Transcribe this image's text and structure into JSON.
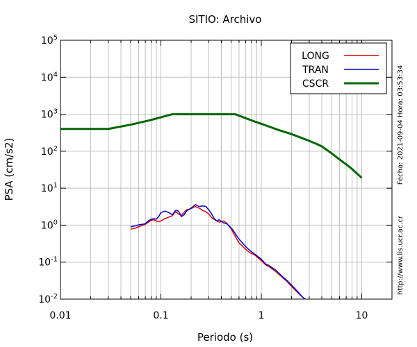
{
  "chart_data": {
    "type": "line",
    "title": "SITIO: Archivo",
    "xlabel": "Periodo (s)",
    "ylabel": "PSA (cm/s2)",
    "xscale": "log",
    "yscale": "log",
    "xlim": [
      0.01,
      20
    ],
    "ylim": [
      0.01,
      100000
    ],
    "grid": true,
    "legend_position": "top-right",
    "x_ticks": [
      {
        "label": "0.01",
        "value": 0.01
      },
      {
        "label": "0.1",
        "value": 0.1
      },
      {
        "label": "1",
        "value": 1
      },
      {
        "label": "10",
        "value": 10
      }
    ],
    "y_ticks": [
      {
        "base": "10",
        "exp": "-2",
        "value": 0.01
      },
      {
        "base": "10",
        "exp": "-1",
        "value": 0.1
      },
      {
        "base": "10",
        "exp": "0",
        "value": 1
      },
      {
        "base": "10",
        "exp": "1",
        "value": 10
      },
      {
        "base": "10",
        "exp": "2",
        "value": 100
      },
      {
        "base": "10",
        "exp": "3",
        "value": 1000
      },
      {
        "base": "10",
        "exp": "4",
        "value": 10000
      },
      {
        "base": "10",
        "exp": "5",
        "value": 100000
      }
    ],
    "side_text_date": "Fecha: 2021-09-04 Hora: 03:53:34",
    "side_text_url": "http://www.lis.ucr.ac.cr",
    "series": [
      {
        "name": "LONG",
        "color": "#dd0000",
        "points": [
          [
            0.05,
            0.78
          ],
          [
            0.055,
            0.82
          ],
          [
            0.06,
            0.9
          ],
          [
            0.065,
            0.98
          ],
          [
            0.07,
            1.05
          ],
          [
            0.075,
            1.2
          ],
          [
            0.08,
            1.35
          ],
          [
            0.085,
            1.4
          ],
          [
            0.09,
            1.3
          ],
          [
            0.095,
            1.25
          ],
          [
            0.1,
            1.3
          ],
          [
            0.11,
            1.5
          ],
          [
            0.12,
            1.65
          ],
          [
            0.13,
            1.8
          ],
          [
            0.14,
            2.3
          ],
          [
            0.15,
            2.0
          ],
          [
            0.16,
            1.85
          ],
          [
            0.17,
            2.2
          ],
          [
            0.18,
            2.6
          ],
          [
            0.2,
            2.8
          ],
          [
            0.22,
            3.2
          ],
          [
            0.24,
            2.9
          ],
          [
            0.26,
            2.5
          ],
          [
            0.28,
            2.3
          ],
          [
            0.3,
            2.0
          ],
          [
            0.32,
            1.6
          ],
          [
            0.35,
            1.35
          ],
          [
            0.38,
            1.2
          ],
          [
            0.42,
            1.3
          ],
          [
            0.45,
            1.15
          ],
          [
            0.5,
            0.8
          ],
          [
            0.55,
            0.5
          ],
          [
            0.6,
            0.33
          ],
          [
            0.65,
            0.27
          ],
          [
            0.7,
            0.22
          ],
          [
            0.75,
            0.19
          ],
          [
            0.8,
            0.17
          ],
          [
            0.85,
            0.16
          ],
          [
            0.9,
            0.14
          ],
          [
            1.0,
            0.11
          ],
          [
            1.1,
            0.085
          ],
          [
            1.2,
            0.075
          ],
          [
            1.4,
            0.055
          ],
          [
            1.6,
            0.04
          ],
          [
            1.8,
            0.03
          ],
          [
            2.0,
            0.022
          ],
          [
            2.3,
            0.015
          ],
          [
            2.6,
            0.011
          ],
          [
            2.75,
            0.01
          ]
        ]
      },
      {
        "name": "TRAN",
        "color": "#0000cc",
        "points": [
          [
            0.05,
            0.9
          ],
          [
            0.055,
            0.95
          ],
          [
            0.06,
            1.02
          ],
          [
            0.065,
            1.05
          ],
          [
            0.07,
            1.1
          ],
          [
            0.075,
            1.3
          ],
          [
            0.08,
            1.45
          ],
          [
            0.085,
            1.5
          ],
          [
            0.09,
            1.45
          ],
          [
            0.095,
            1.7
          ],
          [
            0.1,
            2.2
          ],
          [
            0.11,
            2.4
          ],
          [
            0.12,
            2.2
          ],
          [
            0.13,
            1.9
          ],
          [
            0.14,
            2.5
          ],
          [
            0.15,
            2.4
          ],
          [
            0.16,
            1.7
          ],
          [
            0.17,
            1.9
          ],
          [
            0.18,
            2.4
          ],
          [
            0.2,
            2.9
          ],
          [
            0.22,
            3.6
          ],
          [
            0.24,
            3.2
          ],
          [
            0.26,
            3.3
          ],
          [
            0.28,
            3.2
          ],
          [
            0.3,
            2.6
          ],
          [
            0.32,
            2.0
          ],
          [
            0.34,
            1.5
          ],
          [
            0.36,
            1.3
          ],
          [
            0.38,
            1.4
          ],
          [
            0.42,
            1.15
          ],
          [
            0.45,
            1.1
          ],
          [
            0.48,
            0.95
          ],
          [
            0.52,
            0.75
          ],
          [
            0.56,
            0.55
          ],
          [
            0.6,
            0.42
          ],
          [
            0.65,
            0.33
          ],
          [
            0.7,
            0.26
          ],
          [
            0.75,
            0.22
          ],
          [
            0.8,
            0.19
          ],
          [
            0.9,
            0.15
          ],
          [
            1.0,
            0.12
          ],
          [
            1.1,
            0.09
          ],
          [
            1.2,
            0.08
          ],
          [
            1.4,
            0.06
          ],
          [
            1.6,
            0.042
          ],
          [
            1.8,
            0.032
          ],
          [
            2.0,
            0.024
          ],
          [
            2.3,
            0.016
          ],
          [
            2.6,
            0.011
          ],
          [
            2.75,
            0.01
          ]
        ]
      },
      {
        "name": "CSCR",
        "color": "#006600",
        "points": [
          [
            0.01,
            400
          ],
          [
            0.03,
            400
          ],
          [
            0.05,
            520
          ],
          [
            0.08,
            700
          ],
          [
            0.13,
            1000
          ],
          [
            0.55,
            1000
          ],
          [
            0.8,
            680
          ],
          [
            1.0,
            550
          ],
          [
            1.5,
            370
          ],
          [
            2.0,
            290
          ],
          [
            2.5,
            230
          ],
          [
            3.0,
            190
          ],
          [
            3.5,
            160
          ],
          [
            4.0,
            135
          ],
          [
            5.0,
            88
          ],
          [
            6.0,
            60
          ],
          [
            7.0,
            44
          ],
          [
            8.0,
            33
          ],
          [
            10.0,
            19
          ]
        ]
      }
    ]
  }
}
